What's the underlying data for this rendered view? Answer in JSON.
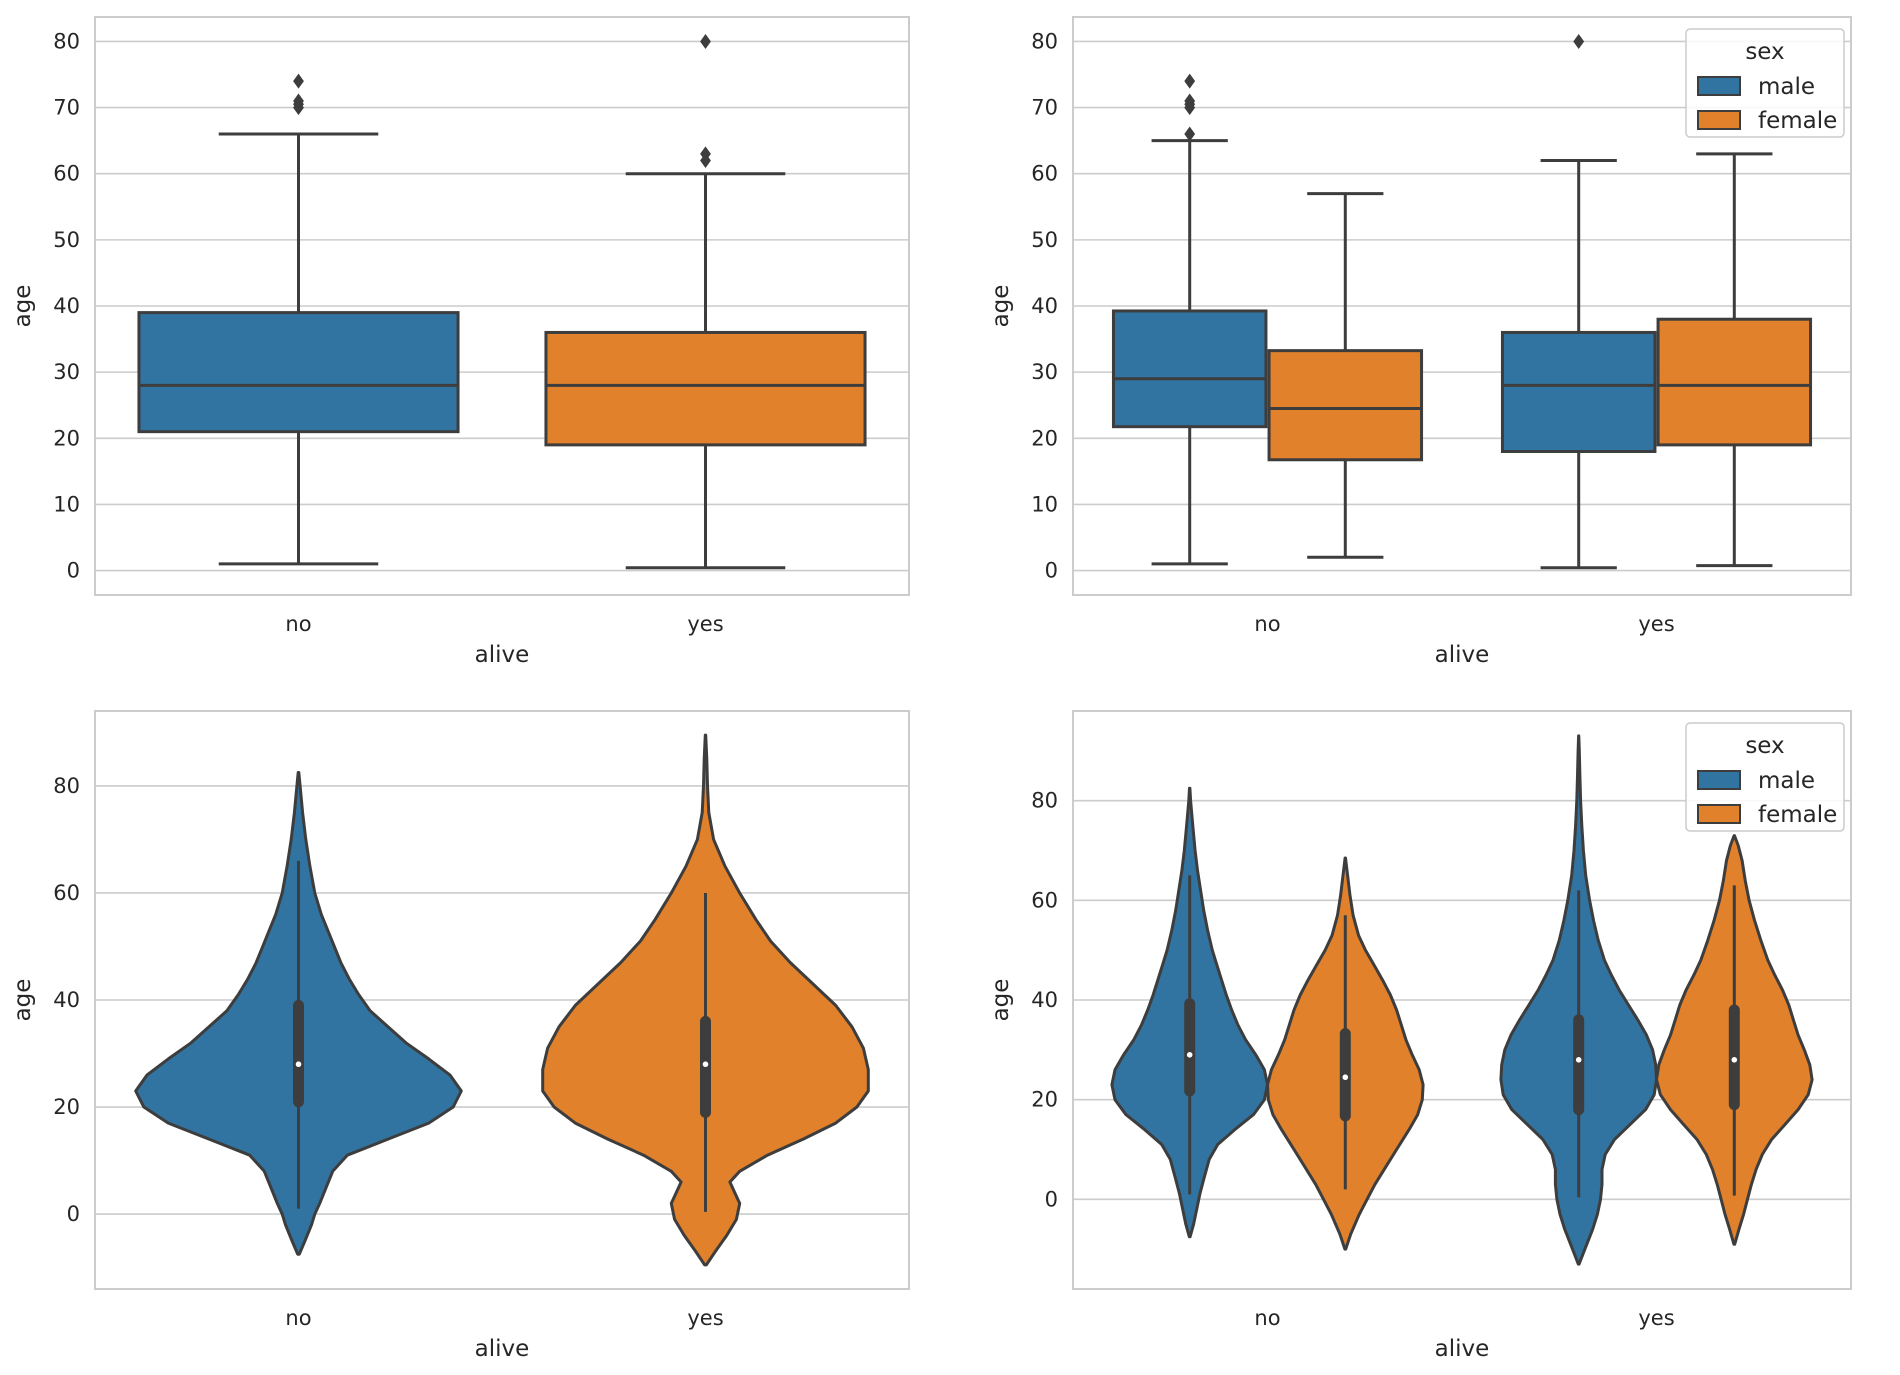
{
  "chart_data": [
    {
      "type": "box",
      "title": "",
      "xlabel": "alive",
      "ylabel": "age",
      "categories": [
        "no",
        "yes"
      ],
      "ylim": [
        -3.7,
        83.7
      ],
      "yticks": [
        0,
        10,
        20,
        30,
        40,
        50,
        60,
        70,
        80
      ],
      "grid": true,
      "legend": null,
      "series": [
        {
          "name": "no",
          "color": "#3274a1",
          "category": "no",
          "q1": 21,
          "median": 28,
          "q3": 39,
          "whisker_low": 1,
          "whisker_high": 66,
          "outliers": [
            70,
            70.5,
            71,
            74
          ]
        },
        {
          "name": "yes",
          "color": "#e1812c",
          "category": "yes",
          "q1": 19,
          "median": 28,
          "q3": 36,
          "whisker_low": 0.42,
          "whisker_high": 60,
          "outliers": [
            62,
            63,
            80
          ]
        }
      ]
    },
    {
      "type": "box",
      "title": "",
      "xlabel": "alive",
      "ylabel": "age",
      "categories": [
        "no",
        "yes"
      ],
      "ylim": [
        -3.7,
        83.7
      ],
      "yticks": [
        0,
        10,
        20,
        30,
        40,
        50,
        60,
        70,
        80
      ],
      "grid": true,
      "legend": {
        "title": "sex",
        "position": "top-right",
        "entries": [
          {
            "label": "male",
            "color": "#3274a1"
          },
          {
            "label": "female",
            "color": "#e1812c"
          }
        ]
      },
      "series": [
        {
          "name": "male",
          "color": "#3274a1",
          "category": "no",
          "q1": 21.75,
          "median": 29,
          "q3": 39.25,
          "whisker_low": 1,
          "whisker_high": 65,
          "outliers": [
            66,
            70,
            70.5,
            71,
            74
          ]
        },
        {
          "name": "female",
          "color": "#e1812c",
          "category": "no",
          "q1": 16.75,
          "median": 24.5,
          "q3": 33.25,
          "whisker_low": 2,
          "whisker_high": 57,
          "outliers": []
        },
        {
          "name": "male",
          "color": "#3274a1",
          "category": "yes",
          "q1": 18,
          "median": 28,
          "q3": 36,
          "whisker_low": 0.42,
          "whisker_high": 62,
          "outliers": [
            80
          ]
        },
        {
          "name": "female",
          "color": "#e1812c",
          "category": "yes",
          "q1": 19,
          "median": 28,
          "q3": 38,
          "whisker_low": 0.75,
          "whisker_high": 63,
          "outliers": []
        }
      ]
    },
    {
      "type": "violin",
      "title": "",
      "xlabel": "alive",
      "ylabel": "age",
      "categories": [
        "no",
        "yes"
      ],
      "ylim": [
        -14,
        94
      ],
      "yticks": [
        0,
        20,
        40,
        60,
        80
      ],
      "grid": true,
      "legend": null,
      "series": [
        {
          "name": "no",
          "color": "#3274a1",
          "category": "no",
          "q1": 21,
          "median": 28,
          "q3": 39,
          "whisker_low": 1,
          "whisker_high": 66,
          "density": [
            [
              -7.5,
              0.005
            ],
            [
              -5,
              0.04
            ],
            [
              -2,
              0.08
            ],
            [
              0,
              0.1
            ],
            [
              2,
              0.13
            ],
            [
              5,
              0.17
            ],
            [
              8,
              0.21
            ],
            [
              11,
              0.3
            ],
            [
              14,
              0.55
            ],
            [
              17,
              0.8
            ],
            [
              20,
              0.95
            ],
            [
              23,
              1.0
            ],
            [
              26,
              0.93
            ],
            [
              29,
              0.8
            ],
            [
              32,
              0.66
            ],
            [
              35,
              0.55
            ],
            [
              38,
              0.44
            ],
            [
              41,
              0.37
            ],
            [
              44,
              0.31
            ],
            [
              47,
              0.26
            ],
            [
              50,
              0.22
            ],
            [
              53,
              0.18
            ],
            [
              56,
              0.14
            ],
            [
              60,
              0.1
            ],
            [
              65,
              0.07
            ],
            [
              70,
              0.045
            ],
            [
              75,
              0.025
            ],
            [
              80,
              0.01
            ],
            [
              82.5,
              0.002
            ]
          ]
        },
        {
          "name": "yes",
          "color": "#e1812c",
          "category": "yes",
          "q1": 19,
          "median": 28,
          "q3": 36,
          "whisker_low": 0.42,
          "whisker_high": 60,
          "density": [
            [
              -9.5,
              0.005
            ],
            [
              -7,
              0.06
            ],
            [
              -4,
              0.13
            ],
            [
              -1,
              0.19
            ],
            [
              2,
              0.21
            ],
            [
              4,
              0.18
            ],
            [
              6,
              0.15
            ],
            [
              8,
              0.21
            ],
            [
              11,
              0.38
            ],
            [
              14,
              0.6
            ],
            [
              17,
              0.8
            ],
            [
              20,
              0.93
            ],
            [
              23,
              1.0
            ],
            [
              27,
              1.0
            ],
            [
              31,
              0.97
            ],
            [
              35,
              0.9
            ],
            [
              39,
              0.8
            ],
            [
              43,
              0.66
            ],
            [
              47,
              0.52
            ],
            [
              51,
              0.4
            ],
            [
              55,
              0.31
            ],
            [
              60,
              0.21
            ],
            [
              65,
              0.12
            ],
            [
              70,
              0.05
            ],
            [
              75,
              0.02
            ],
            [
              80,
              0.012
            ],
            [
              85,
              0.008
            ],
            [
              89.5,
              0.001
            ]
          ]
        }
      ]
    },
    {
      "type": "violin",
      "title": "",
      "xlabel": "alive",
      "ylabel": "age",
      "categories": [
        "no",
        "yes"
      ],
      "ylim": [
        -18,
        98
      ],
      "yticks": [
        0,
        20,
        40,
        60,
        80
      ],
      "grid": true,
      "legend": {
        "title": "sex",
        "position": "top-right",
        "entries": [
          {
            "label": "male",
            "color": "#3274a1"
          },
          {
            "label": "female",
            "color": "#e1812c"
          }
        ]
      },
      "series": [
        {
          "name": "male",
          "color": "#3274a1",
          "category": "no",
          "q1": 21.75,
          "median": 29,
          "q3": 39.25,
          "whisker_low": 1,
          "whisker_high": 65,
          "density": [
            [
              -7.5,
              0.005
            ],
            [
              -5,
              0.05
            ],
            [
              -2,
              0.09
            ],
            [
              1,
              0.13
            ],
            [
              4,
              0.18
            ],
            [
              8,
              0.25
            ],
            [
              11,
              0.36
            ],
            [
              14,
              0.58
            ],
            [
              17,
              0.82
            ],
            [
              20,
              0.96
            ],
            [
              23,
              1.0
            ],
            [
              26,
              0.96
            ],
            [
              29,
              0.85
            ],
            [
              32,
              0.72
            ],
            [
              35,
              0.62
            ],
            [
              38,
              0.54
            ],
            [
              41,
              0.47
            ],
            [
              44,
              0.41
            ],
            [
              47,
              0.35
            ],
            [
              50,
              0.29
            ],
            [
              54,
              0.23
            ],
            [
              58,
              0.18
            ],
            [
              62,
              0.14
            ],
            [
              66,
              0.1
            ],
            [
              70,
              0.07
            ],
            [
              75,
              0.04
            ],
            [
              80,
              0.012
            ],
            [
              82.5,
              0.002
            ]
          ]
        },
        {
          "name": "female",
          "color": "#e1812c",
          "category": "no",
          "q1": 16.75,
          "median": 24.5,
          "q3": 33.25,
          "whisker_low": 2,
          "whisker_high": 57,
          "density": [
            [
              -10,
              0.005
            ],
            [
              -7,
              0.07
            ],
            [
              -3,
              0.18
            ],
            [
              0,
              0.28
            ],
            [
              3,
              0.38
            ],
            [
              6,
              0.5
            ],
            [
              10,
              0.66
            ],
            [
              14,
              0.82
            ],
            [
              17,
              0.93
            ],
            [
              20,
              0.99
            ],
            [
              23,
              1.0
            ],
            [
              26,
              0.95
            ],
            [
              29,
              0.86
            ],
            [
              32,
              0.78
            ],
            [
              35,
              0.72
            ],
            [
              38,
              0.66
            ],
            [
              41,
              0.58
            ],
            [
              44,
              0.48
            ],
            [
              47,
              0.37
            ],
            [
              50,
              0.26
            ],
            [
              53,
              0.17
            ],
            [
              57,
              0.1
            ],
            [
              61,
              0.06
            ],
            [
              65,
              0.03
            ],
            [
              68.5,
              0.002
            ]
          ]
        },
        {
          "name": "male",
          "color": "#3274a1",
          "category": "yes",
          "q1": 18,
          "median": 28,
          "q3": 36,
          "whisker_low": 0.42,
          "whisker_high": 62,
          "density": [
            [
              -13,
              0.005
            ],
            [
              -10,
              0.08
            ],
            [
              -6,
              0.18
            ],
            [
              -3,
              0.24
            ],
            [
              0,
              0.28
            ],
            [
              3,
              0.3
            ],
            [
              6,
              0.3
            ],
            [
              9,
              0.34
            ],
            [
              12,
              0.46
            ],
            [
              15,
              0.66
            ],
            [
              18,
              0.86
            ],
            [
              21,
              0.97
            ],
            [
              24,
              1.0
            ],
            [
              27,
              0.99
            ],
            [
              30,
              0.95
            ],
            [
              33,
              0.87
            ],
            [
              36,
              0.76
            ],
            [
              39,
              0.64
            ],
            [
              42,
              0.52
            ],
            [
              45,
              0.42
            ],
            [
              48,
              0.33
            ],
            [
              52,
              0.25
            ],
            [
              56,
              0.19
            ],
            [
              60,
              0.14
            ],
            [
              65,
              0.09
            ],
            [
              70,
              0.06
            ],
            [
              75,
              0.04
            ],
            [
              80,
              0.025
            ],
            [
              85,
              0.015
            ],
            [
              90,
              0.008
            ],
            [
              93,
              0.001
            ]
          ]
        },
        {
          "name": "female",
          "color": "#e1812c",
          "category": "yes",
          "q1": 19,
          "median": 28,
          "q3": 38,
          "whisker_low": 0.75,
          "whisker_high": 63,
          "density": [
            [
              -9,
              0.005
            ],
            [
              -6,
              0.06
            ],
            [
              -3,
              0.12
            ],
            [
              0,
              0.17
            ],
            [
              3,
              0.22
            ],
            [
              6,
              0.28
            ],
            [
              9,
              0.36
            ],
            [
              12,
              0.48
            ],
            [
              15,
              0.65
            ],
            [
              18,
              0.82
            ],
            [
              21,
              0.95
            ],
            [
              24,
              1.0
            ],
            [
              27,
              0.97
            ],
            [
              30,
              0.9
            ],
            [
              33,
              0.82
            ],
            [
              36,
              0.76
            ],
            [
              39,
              0.7
            ],
            [
              42,
              0.62
            ],
            [
              45,
              0.52
            ],
            [
              48,
              0.43
            ],
            [
              52,
              0.34
            ],
            [
              56,
              0.26
            ],
            [
              60,
              0.19
            ],
            [
              64,
              0.14
            ],
            [
              68,
              0.1
            ],
            [
              71,
              0.05
            ],
            [
              73,
              0.002
            ]
          ]
        }
      ]
    }
  ]
}
